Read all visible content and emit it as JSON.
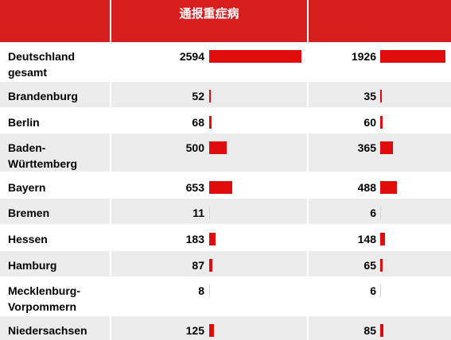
{
  "header": {
    "title": "通报重症病"
  },
  "colors": {
    "header_bg": "#d61e1e",
    "bar": "#e00b0b",
    "row_alt": "#ececec"
  },
  "chart_data": {
    "type": "table",
    "columns": [
      "",
      "通报重症病",
      ""
    ],
    "rows": [
      {
        "state": "Deutschland gesamt",
        "col1": 2594,
        "col2": 1926
      },
      {
        "state": "Brandenburg",
        "col1": 52,
        "col2": 35
      },
      {
        "state": "Berlin",
        "col1": 68,
        "col2": 60
      },
      {
        "state": "Baden-Württemberg",
        "col1": 500,
        "col2": 365
      },
      {
        "state": "Bayern",
        "col1": 653,
        "col2": 488
      },
      {
        "state": "Bremen",
        "col1": 11,
        "col2": 6
      },
      {
        "state": "Hessen",
        "col1": 183,
        "col2": 148
      },
      {
        "state": "Hamburg",
        "col1": 87,
        "col2": 65
      },
      {
        "state": "Mecklenburg-Vorpommern",
        "col1": 8,
        "col2": 6
      },
      {
        "state": "Niedersachsen",
        "col1": 125,
        "col2": 85
      }
    ],
    "bar_max": {
      "col1": 2594,
      "col2": 1926
    }
  }
}
